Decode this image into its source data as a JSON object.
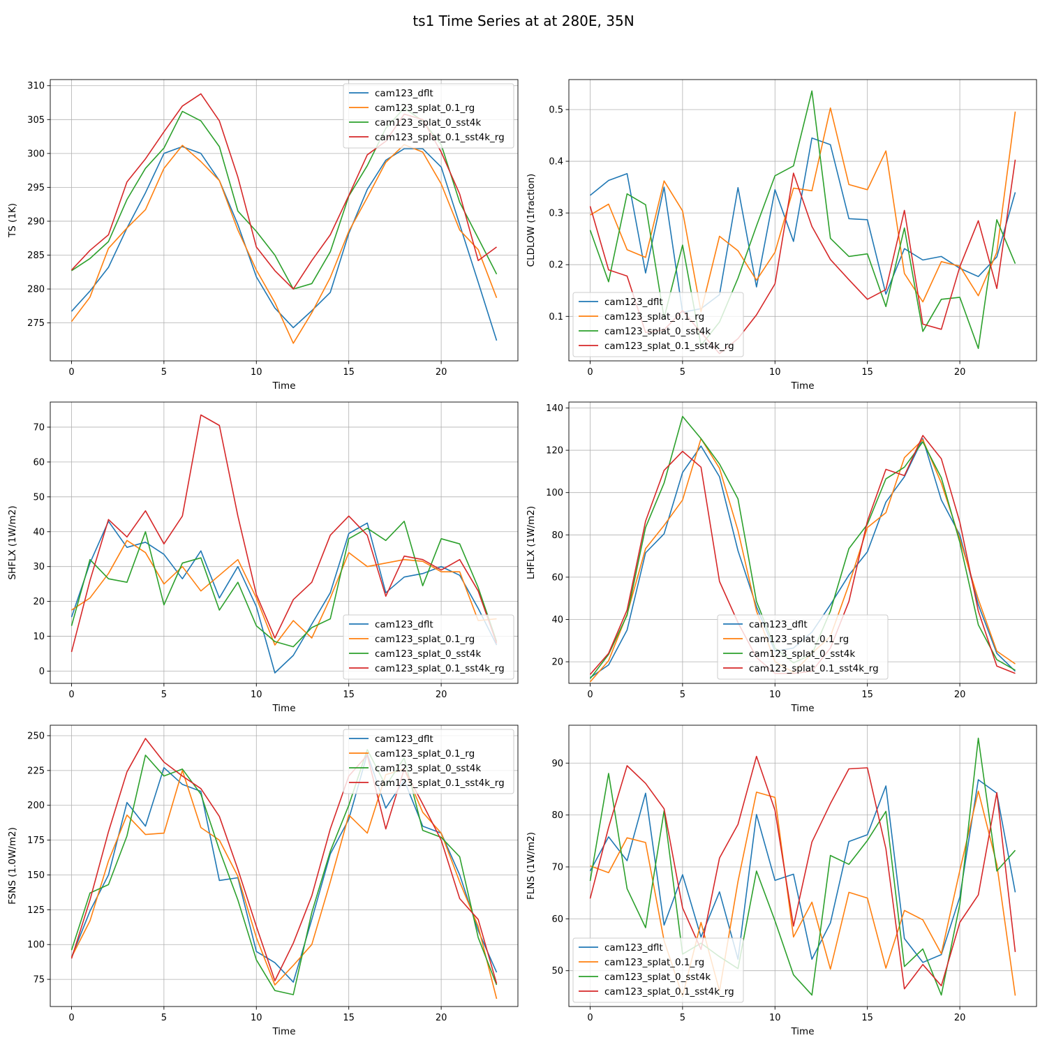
{
  "figure": {
    "suptitle": "ts1 Time Series at at 280E, 35N"
  },
  "series_names": [
    "cam123_dflt",
    "cam123_splat_0.1_rg",
    "cam123_splat_0_sst4k",
    "cam123_splat_0.1_sst4k_rg"
  ],
  "colors": [
    "#1f77b4",
    "#ff7f0e",
    "#2ca02c",
    "#d62728"
  ],
  "chart_data": [
    {
      "type": "line",
      "title": "",
      "xlabel": "Time",
      "ylabel": "TS (1K)",
      "x": [
        0,
        1,
        2,
        3,
        4,
        5,
        6,
        7,
        8,
        9,
        10,
        11,
        12,
        13,
        14,
        15,
        16,
        17,
        18,
        19,
        20,
        21,
        22,
        23
      ],
      "xlim": [
        -1.15,
        24.15
      ],
      "ylim": [
        310.9,
        269.4
      ],
      "xticks": [
        0,
        5,
        10,
        15,
        20
      ],
      "yticks": [
        275,
        280,
        285,
        290,
        295,
        300,
        305,
        310
      ],
      "legend": "upper-right",
      "series": [
        {
          "name": "cam123_dflt",
          "values": [
            276.7,
            279.7,
            283.2,
            289.0,
            294.2,
            300.0,
            301.0,
            300.0,
            296.0,
            289.5,
            281.8,
            277.2,
            274.3,
            276.8,
            279.5,
            288.2,
            294.7,
            299.0,
            300.7,
            300.7,
            298.0,
            289.5,
            281.0,
            272.4
          ]
        },
        {
          "name": "cam123_splat_0.1_rg",
          "values": [
            275.2,
            278.8,
            286.0,
            289.0,
            291.7,
            297.8,
            301.2,
            298.8,
            296.0,
            288.7,
            282.8,
            278.0,
            272.0,
            276.5,
            281.7,
            288.5,
            293.5,
            298.7,
            301.3,
            300.2,
            295.5,
            288.7,
            285.8,
            278.7
          ]
        },
        {
          "name": "cam123_splat_0_sst4k",
          "values": [
            282.7,
            284.5,
            287.0,
            293.2,
            297.8,
            300.8,
            306.2,
            304.8,
            301.0,
            291.5,
            288.5,
            285.0,
            280.0,
            280.8,
            285.5,
            293.7,
            298.2,
            303.7,
            306.7,
            304.8,
            301.3,
            292.8,
            287.5,
            282.2
          ]
        },
        {
          "name": "cam123_splat_0.1_sst4k_rg",
          "values": [
            282.8,
            285.7,
            288.0,
            295.8,
            299.2,
            303.2,
            307.0,
            308.8,
            304.8,
            296.5,
            286.2,
            282.7,
            280.0,
            284.2,
            288.0,
            293.8,
            299.8,
            301.8,
            305.8,
            305.0,
            300.2,
            294.0,
            284.2,
            286.2
          ]
        }
      ]
    },
    {
      "type": "line",
      "title": "",
      "xlabel": "Time",
      "ylabel": "CLDLOW (1fraction)",
      "x": [
        0,
        1,
        2,
        3,
        4,
        5,
        6,
        7,
        8,
        9,
        10,
        11,
        12,
        13,
        14,
        15,
        16,
        17,
        18,
        19,
        20,
        21,
        22,
        23
      ],
      "xlim": [
        -1.15,
        24.15
      ],
      "ylim": [
        0.558,
        0.014
      ],
      "xticks": [
        0,
        5,
        10,
        15,
        20
      ],
      "yticks": [
        0.1,
        0.2,
        0.3,
        0.4,
        0.5
      ],
      "legend": "lower-left",
      "series": [
        {
          "name": "cam123_dflt",
          "values": [
            0.334,
            0.363,
            0.376,
            0.184,
            0.35,
            0.108,
            0.115,
            0.142,
            0.349,
            0.157,
            0.345,
            0.245,
            0.445,
            0.432,
            0.289,
            0.287,
            0.143,
            0.231,
            0.209,
            0.216,
            0.193,
            0.177,
            0.215,
            0.34
          ]
        },
        {
          "name": "cam123_splat_0.1_rg",
          "values": [
            0.296,
            0.317,
            0.229,
            0.214,
            0.362,
            0.304,
            0.109,
            0.255,
            0.227,
            0.17,
            0.224,
            0.348,
            0.343,
            0.503,
            0.355,
            0.345,
            0.42,
            0.183,
            0.128,
            0.206,
            0.197,
            0.14,
            0.224,
            0.496
          ]
        },
        {
          "name": "cam123_splat_0_sst4k",
          "values": [
            0.267,
            0.167,
            0.337,
            0.316,
            0.097,
            0.238,
            0.044,
            0.089,
            0.174,
            0.275,
            0.372,
            0.391,
            0.536,
            0.251,
            0.216,
            0.221,
            0.119,
            0.271,
            0.071,
            0.133,
            0.137,
            0.038,
            0.287,
            0.202
          ]
        },
        {
          "name": "cam123_splat_0.1_sst4k_rg",
          "values": [
            0.313,
            0.19,
            0.178,
            0.069,
            0.074,
            0.111,
            0.069,
            0.028,
            0.057,
            0.103,
            0.163,
            0.377,
            0.274,
            0.21,
            0.171,
            0.133,
            0.152,
            0.305,
            0.085,
            0.075,
            0.196,
            0.285,
            0.154,
            0.403
          ]
        }
      ]
    },
    {
      "type": "line",
      "title": "",
      "xlabel": "Time",
      "ylabel": "SHFLX (1W/m2)",
      "x": [
        0,
        1,
        2,
        3,
        4,
        5,
        6,
        7,
        8,
        9,
        10,
        11,
        12,
        13,
        14,
        15,
        16,
        17,
        18,
        19,
        20,
        21,
        22,
        23
      ],
      "xlim": [
        -1.15,
        24.15
      ],
      "ylim": [
        77.2,
        -3.5
      ],
      "xticks": [
        0,
        5,
        10,
        15,
        20
      ],
      "yticks": [
        0,
        10,
        20,
        30,
        40,
        50,
        60,
        70
      ],
      "legend": "lower-right",
      "series": [
        {
          "name": "cam123_dflt",
          "values": [
            15.5,
            31.0,
            43.0,
            35.5,
            37.0,
            33.5,
            26.5,
            34.5,
            21.0,
            30.0,
            18.5,
            -0.5,
            4.5,
            13.5,
            22.5,
            39.5,
            42.5,
            22.5,
            27.0,
            28.0,
            30.0,
            27.5,
            18.0,
            7.5
          ]
        },
        {
          "name": "cam123_splat_0.1_rg",
          "values": [
            17.5,
            21.0,
            28.0,
            37.5,
            34.0,
            25.0,
            30.0,
            23.0,
            27.5,
            32.0,
            21.0,
            7.5,
            14.5,
            9.5,
            21.0,
            34.0,
            30.0,
            31.0,
            32.0,
            31.5,
            28.5,
            28.5,
            14.5,
            15.0
          ]
        },
        {
          "name": "cam123_splat_0_sst4k",
          "values": [
            13.0,
            32.0,
            26.5,
            25.5,
            40.0,
            19.0,
            31.0,
            32.5,
            17.5,
            25.5,
            13.0,
            8.5,
            7.0,
            12.5,
            15.0,
            38.0,
            41.0,
            37.5,
            43.0,
            24.5,
            38.0,
            36.5,
            24.0,
            8.5
          ]
        },
        {
          "name": "cam123_splat_0.1_sst4k_rg",
          "values": [
            5.5,
            26.0,
            43.5,
            38.5,
            46.0,
            36.5,
            44.5,
            73.5,
            70.5,
            44.5,
            22.0,
            9.5,
            20.5,
            25.5,
            39.0,
            44.5,
            39.0,
            21.5,
            33.0,
            32.0,
            29.0,
            32.0,
            23.0,
            8.0
          ]
        }
      ]
    },
    {
      "type": "line",
      "title": "",
      "xlabel": "Time",
      "ylabel": "LHFLX (1W/m2)",
      "x": [
        0,
        1,
        2,
        3,
        4,
        5,
        6,
        7,
        8,
        9,
        10,
        11,
        12,
        13,
        14,
        15,
        16,
        17,
        18,
        19,
        20,
        21,
        22,
        23
      ],
      "xlim": [
        -1.15,
        24.15
      ],
      "ylim": [
        142.8,
        9.8
      ],
      "xticks": [
        0,
        5,
        10,
        15,
        20
      ],
      "yticks": [
        20,
        40,
        60,
        80,
        100,
        120,
        140
      ],
      "legend": "lower-center",
      "series": [
        {
          "name": "cam123_dflt",
          "values": [
            12.5,
            18.5,
            35.0,
            71.5,
            80.5,
            109.5,
            122.0,
            107.5,
            72.5,
            46.0,
            25.0,
            26.5,
            34.0,
            47.0,
            61.0,
            72.0,
            95.5,
            107.5,
            125.5,
            96.5,
            80.0,
            47.0,
            24.0,
            15.5
          ]
        },
        {
          "name": "cam123_splat_0.1_rg",
          "values": [
            10.5,
            20.5,
            42.5,
            73.5,
            84.5,
            96.5,
            125.5,
            111.5,
            82.0,
            44.0,
            20.0,
            15.0,
            24.0,
            32.0,
            56.5,
            83.5,
            90.5,
            116.5,
            125.0,
            104.5,
            78.0,
            49.5,
            25.0,
            19.0
          ]
        },
        {
          "name": "cam123_splat_0_sst4k",
          "values": [
            12.0,
            23.5,
            42.0,
            83.5,
            104.5,
            136.0,
            125.5,
            113.5,
            97.0,
            48.5,
            26.5,
            19.5,
            23.5,
            44.0,
            73.5,
            85.0,
            106.5,
            112.0,
            124.0,
            107.0,
            76.5,
            37.5,
            21.0,
            16.0
          ]
        },
        {
          "name": "cam123_splat_0.1_sst4k_rg",
          "values": [
            14.0,
            24.0,
            44.5,
            86.5,
            110.5,
            119.5,
            112.0,
            58.0,
            38.5,
            22.0,
            14.5,
            14.5,
            15.5,
            26.5,
            48.5,
            86.5,
            111.0,
            108.0,
            127.0,
            116.0,
            86.0,
            44.0,
            18.0,
            14.5
          ]
        }
      ]
    },
    {
      "type": "line",
      "title": "",
      "xlabel": "Time",
      "ylabel": "FSNS (1.0W/m2)",
      "x": [
        0,
        1,
        2,
        3,
        4,
        5,
        6,
        7,
        8,
        9,
        10,
        11,
        12,
        13,
        14,
        15,
        16,
        17,
        18,
        19,
        20,
        21,
        22,
        23
      ],
      "xlim": [
        -1.15,
        24.15
      ],
      "ylim": [
        257.5,
        55.5
      ],
      "xticks": [
        0,
        5,
        10,
        15,
        20
      ],
      "yticks": [
        75,
        100,
        125,
        150,
        175,
        200,
        225,
        250
      ],
      "legend": "upper-right",
      "series": [
        {
          "name": "cam123_dflt",
          "values": [
            91.0,
            124.0,
            150.0,
            202.0,
            185.0,
            227.0,
            215.0,
            210.0,
            146.0,
            148.0,
            95.0,
            87.0,
            73.0,
            118.0,
            165.0,
            190.0,
            237.0,
            198.0,
            218.0,
            185.0,
            180.0,
            150.0,
            110.0,
            80.0
          ]
        },
        {
          "name": "cam123_splat_0.1_rg",
          "values": [
            91.0,
            117.0,
            160.0,
            193.0,
            179.0,
            180.0,
            225.0,
            184.0,
            175.0,
            149.0,
            105.0,
            71.0,
            85.0,
            100.0,
            145.0,
            193.0,
            180.0,
            222.0,
            226.0,
            195.0,
            180.0,
            145.0,
            113.0,
            61.0
          ]
        },
        {
          "name": "cam123_splat_0_sst4k",
          "values": [
            96.0,
            137.0,
            143.0,
            178.0,
            236.0,
            221.0,
            226.0,
            208.0,
            168.0,
            132.0,
            89.0,
            67.0,
            64.0,
            123.0,
            167.0,
            200.0,
            240.0,
            214.0,
            234.0,
            182.0,
            177.0,
            163.0,
            105.0,
            71.0
          ]
        },
        {
          "name": "cam123_splat_0.1_sst4k_rg",
          "values": [
            90.0,
            132.0,
            181.0,
            224.0,
            248.0,
            231.0,
            221.0,
            212.0,
            192.0,
            154.0,
            113.0,
            74.0,
            101.0,
            135.0,
            183.0,
            221.0,
            236.0,
            183.0,
            226.0,
            201.0,
            175.0,
            133.0,
            118.0,
            72.0
          ]
        }
      ]
    },
    {
      "type": "line",
      "title": "",
      "xlabel": "Time",
      "ylabel": "FLNS (1W/m2)",
      "x": [
        0,
        1,
        2,
        3,
        4,
        5,
        6,
        7,
        8,
        9,
        10,
        11,
        12,
        13,
        14,
        15,
        16,
        17,
        18,
        19,
        20,
        21,
        22,
        23
      ],
      "xlim": [
        -1.15,
        24.15
      ],
      "ylim": [
        97.3,
        43.1
      ],
      "xticks": [
        0,
        5,
        10,
        15,
        20
      ],
      "yticks": [
        50,
        60,
        70,
        80,
        90
      ],
      "legend": "lower-left",
      "series": [
        {
          "name": "cam123_dflt",
          "values": [
            69.2,
            75.8,
            71.2,
            84.2,
            58.8,
            68.5,
            56.5,
            65.2,
            52.2,
            80.1,
            67.4,
            68.6,
            52.2,
            59.2,
            74.9,
            76.2,
            85.6,
            56.2,
            51.6,
            53.1,
            64.2,
            86.8,
            84.2,
            65.1
          ]
        },
        {
          "name": "cam123_splat_0.1_rg",
          "values": [
            70.2,
            68.9,
            75.6,
            74.7,
            55.8,
            45.1,
            59.3,
            46.1,
            67.2,
            84.4,
            83.4,
            56.5,
            63.2,
            50.3,
            65.1,
            64.0,
            50.5,
            61.6,
            59.8,
            53.3,
            69.3,
            84.6,
            70.5,
            45.2
          ]
        },
        {
          "name": "cam123_splat_0_sst4k",
          "values": [
            67.3,
            88.0,
            65.8,
            58.3,
            80.8,
            53.2,
            55.3,
            52.7,
            50.4,
            69.2,
            59.6,
            49.2,
            45.3,
            72.2,
            70.5,
            75.1,
            80.7,
            50.8,
            54.2,
            45.3,
            62.8,
            94.8,
            69.2,
            73.2
          ]
        },
        {
          "name": "cam123_splat_0.1_sst4k_rg",
          "values": [
            63.9,
            77.6,
            89.5,
            86.1,
            81.2,
            62.1,
            54.1,
            71.7,
            78.2,
            91.3,
            80.9,
            58.6,
            74.8,
            82.2,
            88.9,
            89.1,
            73.5,
            46.5,
            51.2,
            47.1,
            59.3,
            64.6,
            84.3,
            53.6
          ]
        }
      ]
    }
  ]
}
